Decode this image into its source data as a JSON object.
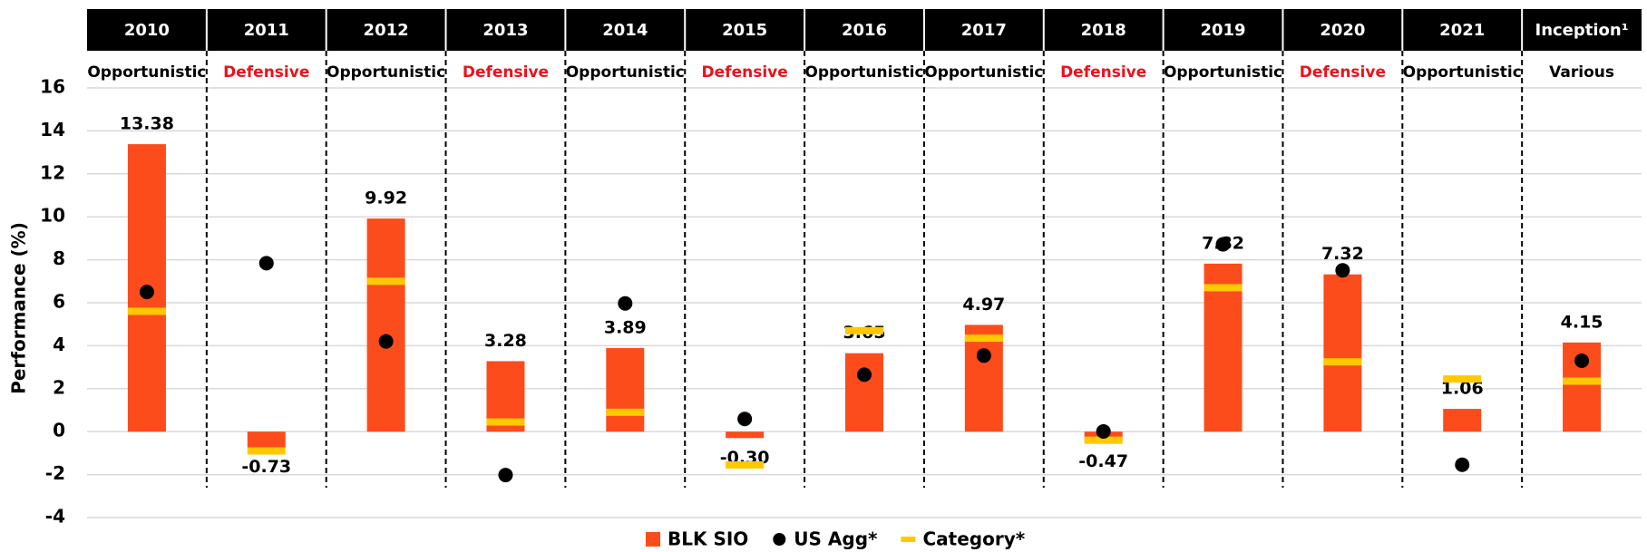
{
  "chart_data": {
    "type": "bar",
    "y_label": "Performance (%)",
    "categories": [
      "2010",
      "2011",
      "2012",
      "2013",
      "2014",
      "2015",
      "2016",
      "2017",
      "2018",
      "2019",
      "2020",
      "2021",
      "Inception¹"
    ],
    "strategies": [
      "Opportunistic",
      "Defensive",
      "Opportunistic",
      "Defensive",
      "Opportunistic",
      "Defensive",
      "Opportunistic",
      "Opportunistic",
      "Defensive",
      "Opportunistic",
      "Defensive",
      "Opportunistic",
      "Various"
    ],
    "strategy_colors": {
      "Opportunistic": "#000000",
      "Defensive": "#e8131b",
      "Various": "#000000"
    },
    "series": [
      {
        "name": "BLK SIO",
        "color": "#fc4c1c",
        "mark": "bar",
        "values": [
          13.38,
          -0.73,
          9.92,
          3.28,
          3.89,
          -0.3,
          3.65,
          4.97,
          -0.47,
          7.82,
          7.32,
          1.06,
          4.15
        ],
        "value_labels": [
          "13.38",
          "-0.73",
          "9.92",
          "3.28",
          "3.89",
          "-0.30",
          "3.65",
          "4.97",
          "-0.47",
          "7.82",
          "7.32",
          "1.06",
          "4.15"
        ]
      },
      {
        "name": "US Agg*",
        "color": "#000000",
        "mark": "dot",
        "values": [
          6.5,
          7.84,
          4.2,
          -2.02,
          5.97,
          0.59,
          2.65,
          3.54,
          0.01,
          8.72,
          7.51,
          -1.54,
          3.3
        ]
      },
      {
        "name": "Category*",
        "color": "#ffc800",
        "mark": "dash",
        "values": [
          5.6,
          -0.9,
          7.0,
          0.45,
          0.9,
          -1.55,
          4.7,
          4.35,
          -0.4,
          6.7,
          3.25,
          2.45,
          2.35
        ]
      }
    ],
    "ylim": [
      -4,
      16
    ],
    "yticks": [
      -4,
      -2,
      0,
      2,
      4,
      6,
      8,
      10,
      12,
      14,
      16
    ],
    "grid": true
  }
}
